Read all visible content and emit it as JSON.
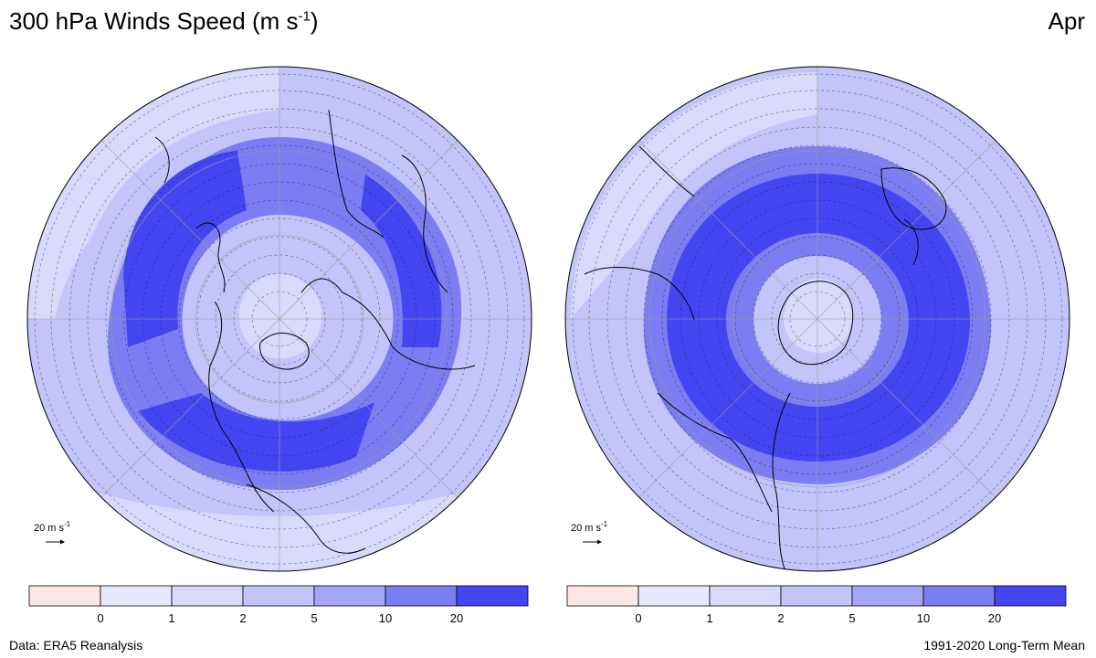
{
  "header": {
    "title_prefix": "300 hPa Winds Speed (m s",
    "title_exp": "-1",
    "title_suffix": ")",
    "month": "Apr"
  },
  "footer": {
    "left": "Data: ERA5 Reanalysis",
    "right": "1991-2020 Long-Term Mean"
  },
  "reference_vector": {
    "value_text": "20 m s",
    "exp": "-1"
  },
  "colorbar": {
    "ticks": [
      "0",
      "1",
      "2",
      "5",
      "10",
      "20"
    ],
    "colors": [
      "#fde8e6",
      "#e7e8fc",
      "#d9dafb",
      "#c3c5fa",
      "#a4a6f7",
      "#7b7ef3",
      "#4346f0"
    ]
  },
  "panels": [
    {
      "name": "northern-hemisphere",
      "hemisphere": "North",
      "coastline_color": "#000000"
    },
    {
      "name": "southern-hemisphere",
      "hemisphere": "South",
      "coastline_color": "#000000"
    }
  ]
}
